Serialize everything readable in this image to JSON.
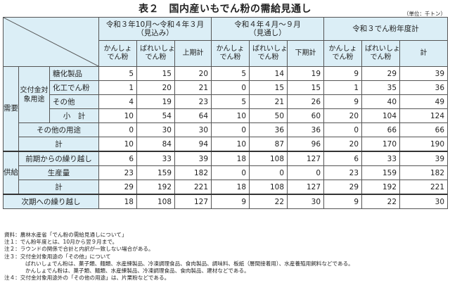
{
  "title": "表２　国内産いもでん粉の需給見通し",
  "unit": "（単位：千トン）",
  "header": {
    "group1": "令和３年10月～令和４年３月",
    "group1_sub": "（見込み）",
    "group2": "令和４年４月～９月",
    "group2_sub": "（見通し）",
    "group3": "令和３でん粉年度計",
    "col_sweet_1": "かんしょ",
    "col_sweet_2": "でん粉",
    "col_potato_1": "ばれいしょ",
    "col_potato_2": "でん粉",
    "col_h1_total": "上期計",
    "col_h2_total": "下期計",
    "col_total": "計"
  },
  "labels": {
    "demand": "需要",
    "subsidy_use": "交付金対象用途",
    "sugar": "糖化製品",
    "chemical": "化工でん粉",
    "other": "その他",
    "subtotal": "小　計",
    "other_use": "その他の用途",
    "demand_total": "計",
    "supply": "供給",
    "carryover_in": "前期からの繰り越し",
    "production": "生産量",
    "supply_total": "計",
    "carryover_out": "次期への繰り越し"
  },
  "rows": {
    "sugar": [
      "5",
      "15",
      "20",
      "5",
      "14",
      "19",
      "9",
      "29",
      "39"
    ],
    "chemical": [
      "1",
      "20",
      "21",
      "0",
      "15",
      "15",
      "1",
      "35",
      "36"
    ],
    "other": [
      "4",
      "19",
      "23",
      "5",
      "21",
      "26",
      "9",
      "40",
      "49"
    ],
    "subtotal": [
      "10",
      "54",
      "64",
      "10",
      "50",
      "60",
      "20",
      "104",
      "124"
    ],
    "other_use": [
      "0",
      "30",
      "30",
      "0",
      "36",
      "36",
      "0",
      "66",
      "66"
    ],
    "demand_total": [
      "10",
      "84",
      "94",
      "10",
      "87",
      "96",
      "20",
      "170",
      "190"
    ],
    "carryover_in": [
      "6",
      "33",
      "39",
      "18",
      "108",
      "127",
      "6",
      "33",
      "39"
    ],
    "production": [
      "23",
      "159",
      "182",
      "0",
      "0",
      "0",
      "23",
      "159",
      "182"
    ],
    "supply_total": [
      "29",
      "192",
      "221",
      "18",
      "108",
      "127",
      "29",
      "192",
      "221"
    ],
    "carryover_out": [
      "18",
      "108",
      "127",
      "9",
      "22",
      "30",
      "9",
      "22",
      "30"
    ]
  },
  "notes": {
    "source": "資料：農林水産省「でん粉の需給見通しについて」",
    "n1": "注１：でん粉年度とは、10月から翌９月まで。",
    "n2": "注２：ラウンドの関係で合計と内訳が一致しない場合がある。",
    "n3": "注３：交付金対象用途の「その他」について",
    "n3a": "ばれいしょでん粉は、菓子類、麺類、水産練製品、冷凍調理食品、食肉製品、調味料、板紙（層間接着用）、水産養殖用飼料などである。",
    "n3b": "かんしょでん粉は、菓子類、麺類、水産練製品、冷凍調理食品、食肉製品、建材などである。",
    "n4": "注４：交付金対象用途外の「その他の用途」は、片栗粉などである。"
  }
}
